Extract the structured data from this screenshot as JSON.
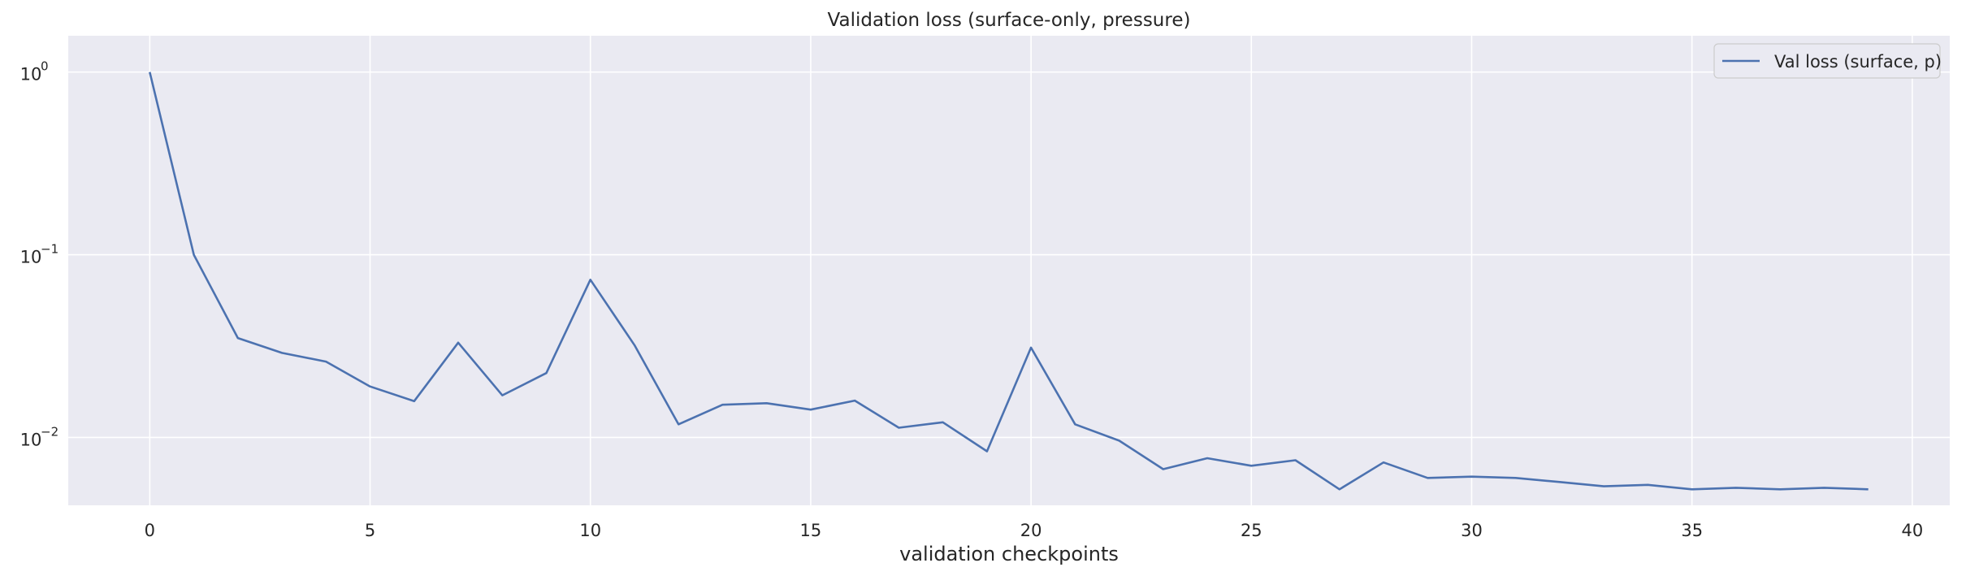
{
  "chart_data": {
    "type": "line",
    "title": "Validation loss (surface-only, pressure)",
    "xlabel": "validation checkpoints",
    "ylabel": "",
    "yscale": "log",
    "xlim": [
      -1.85,
      40.85
    ],
    "ylim": [
      0.00425,
      1.58
    ],
    "xticks": [
      0,
      5,
      10,
      15,
      20,
      25,
      30,
      35,
      40
    ],
    "yticks": [
      {
        "value": 1,
        "base": "10",
        "exp": "0"
      },
      {
        "value": 0.1,
        "base": "10",
        "exp": "−1"
      },
      {
        "value": 0.01,
        "base": "10",
        "exp": "−2"
      }
    ],
    "grid": true,
    "legend_position": "top-right",
    "colors": {
      "background": "#eaeaf2",
      "grid": "#ffffff",
      "series": "#4c72b0",
      "text": "#262626"
    },
    "x": [
      0,
      1,
      2,
      3,
      4,
      5,
      6,
      7,
      8,
      9,
      10,
      11,
      12,
      13,
      14,
      15,
      16,
      17,
      18,
      19,
      20,
      21,
      22,
      23,
      24,
      25,
      26,
      27,
      28,
      29,
      30,
      31,
      32,
      33,
      34,
      35,
      36,
      37,
      38,
      39
    ],
    "series": [
      {
        "name": "Val loss (surface, p)",
        "values": [
          1.0,
          0.1,
          0.035,
          0.029,
          0.026,
          0.019,
          0.0158,
          0.033,
          0.017,
          0.0225,
          0.073,
          0.032,
          0.0118,
          0.0151,
          0.0154,
          0.0142,
          0.0159,
          0.0113,
          0.0121,
          0.0084,
          0.031,
          0.0118,
          0.0096,
          0.0067,
          0.0077,
          0.007,
          0.0075,
          0.0052,
          0.0073,
          0.006,
          0.0061,
          0.006,
          0.0057,
          0.0054,
          0.0055,
          0.0052,
          0.0053,
          0.0052,
          0.0053,
          0.0052
        ]
      }
    ]
  }
}
